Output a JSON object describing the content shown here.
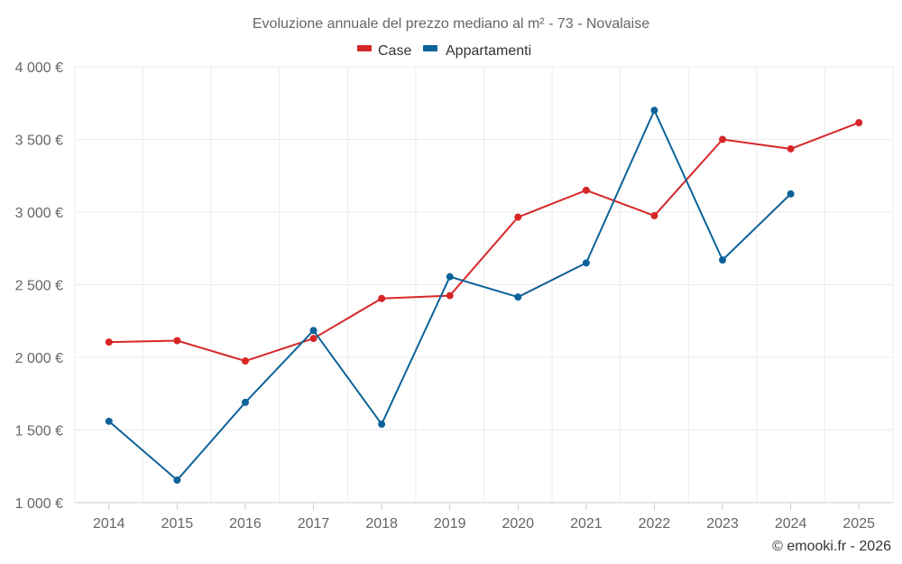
{
  "chart_data": {
    "type": "line",
    "title": "Evoluzione annuale del prezzo mediano al m² - 73 - Novalaise",
    "categories": [
      "2014",
      "2015",
      "2016",
      "2017",
      "2018",
      "2019",
      "2020",
      "2021",
      "2022",
      "2023",
      "2024",
      "2025"
    ],
    "series": [
      {
        "name": "Case",
        "color": "#d62728",
        "values": [
          2105,
          2115,
          1975,
          2130,
          2405,
          2425,
          2965,
          3150,
          2975,
          3500,
          3435,
          3615
        ]
      },
      {
        "name": "Appartamenti",
        "color": "#0d6399",
        "values": [
          1560,
          1155,
          1690,
          2185,
          1540,
          2555,
          2415,
          2650,
          3700,
          2670,
          3125,
          null
        ]
      }
    ],
    "ylim": [
      1000,
      4000
    ],
    "yticks": [
      1000,
      1500,
      2000,
      2500,
      3000,
      3500,
      4000
    ],
    "ytick_labels": [
      "1 000 €",
      "1 500 €",
      "2 000 €",
      "2 500 €",
      "3 000 €",
      "3 500 €",
      "4 000 €"
    ],
    "grid": true,
    "legend_position": "top-center",
    "credit": "© emooki.fr - 2026"
  }
}
